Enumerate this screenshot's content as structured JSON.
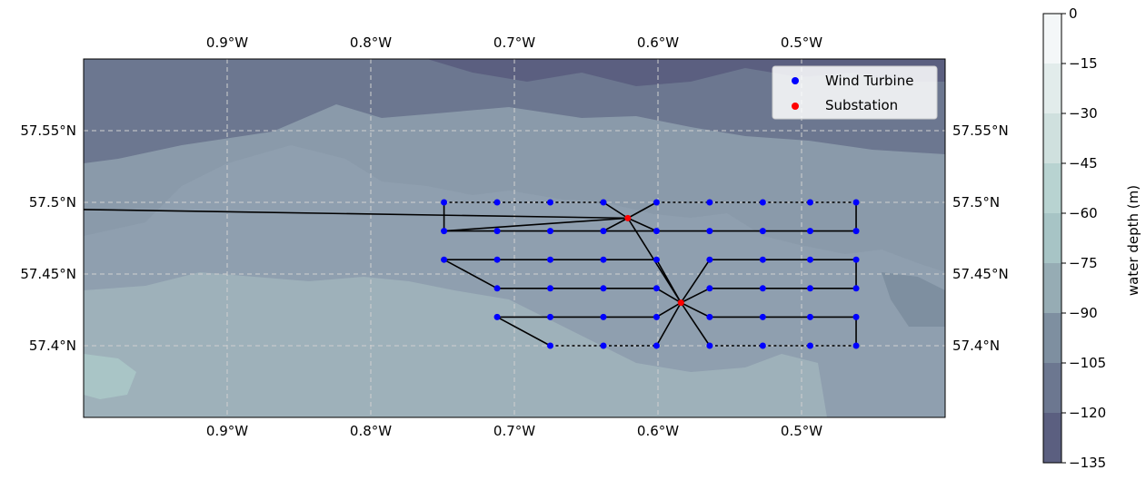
{
  "map": {
    "type": "map",
    "lon_range": [
      -1.0,
      -0.4
    ],
    "lat_range": [
      57.35,
      57.6
    ],
    "lon_ticks": [
      {
        "value": -0.9,
        "label": "0.9°W"
      },
      {
        "value": -0.8,
        "label": "0.8°W"
      },
      {
        "value": -0.7,
        "label": "0.7°W"
      },
      {
        "value": -0.6,
        "label": "0.6°W"
      },
      {
        "value": -0.5,
        "label": "0.5°W"
      }
    ],
    "lat_ticks": [
      {
        "value": 57.55,
        "label": "57.55°N"
      },
      {
        "value": 57.5,
        "label": "57.5°N"
      },
      {
        "value": 57.45,
        "label": "57.45°N"
      },
      {
        "value": 57.4,
        "label": "57.4°N"
      }
    ],
    "grid": true,
    "legend_position": "top-right",
    "legend": [
      {
        "label": "Wind Turbine",
        "color": "#0000ff"
      },
      {
        "label": "Substation",
        "color": "#ff0000"
      }
    ],
    "colorbar": {
      "label": "water depth (m)",
      "ticks": [
        "0",
        "−15",
        "−30",
        "−45",
        "−60",
        "−75",
        "−90",
        "−105",
        "−120",
        "−135"
      ],
      "colors": [
        "#f4f7f8",
        "#e2eceb",
        "#cfe0de",
        "#b8d3d1",
        "#a7c4c5",
        "#96acb4",
        "#7e8fa0",
        "#6c7790",
        "#5b5f80",
        "#4b4a6e"
      ]
    },
    "substations": [
      {
        "lon": -0.621,
        "lat": 57.489
      },
      {
        "lon": -0.584,
        "lat": 57.43
      }
    ],
    "turbine_rows": [
      {
        "lat": 57.5,
        "lons": [
          -0.749,
          -0.712,
          -0.675,
          -0.638,
          -0.601,
          -0.564,
          -0.527,
          -0.494,
          -0.462
        ]
      },
      {
        "lat": 57.48,
        "lons": [
          -0.749,
          -0.712,
          -0.675,
          -0.638,
          -0.601,
          -0.564,
          -0.527,
          -0.494,
          -0.462
        ]
      },
      {
        "lat": 57.46,
        "lons": [
          -0.749,
          -0.712,
          -0.675,
          -0.638,
          -0.601,
          -0.564,
          -0.527,
          -0.494,
          -0.462
        ]
      },
      {
        "lat": 57.44,
        "lons": [
          -0.712,
          -0.675,
          -0.638,
          -0.601,
          -0.564,
          -0.527,
          -0.494,
          -0.462
        ]
      },
      {
        "lat": 57.42,
        "lons": [
          -0.712,
          -0.675,
          -0.638,
          -0.601,
          -0.564,
          -0.527,
          -0.494,
          -0.462
        ]
      },
      {
        "lat": 57.4,
        "lons": [
          -0.675,
          -0.638,
          -0.601,
          -0.564,
          -0.527,
          -0.494,
          -0.462
        ]
      }
    ],
    "export_cable": [
      [
        -1.0,
        57.495
      ],
      [
        -0.621,
        57.489
      ]
    ]
  }
}
